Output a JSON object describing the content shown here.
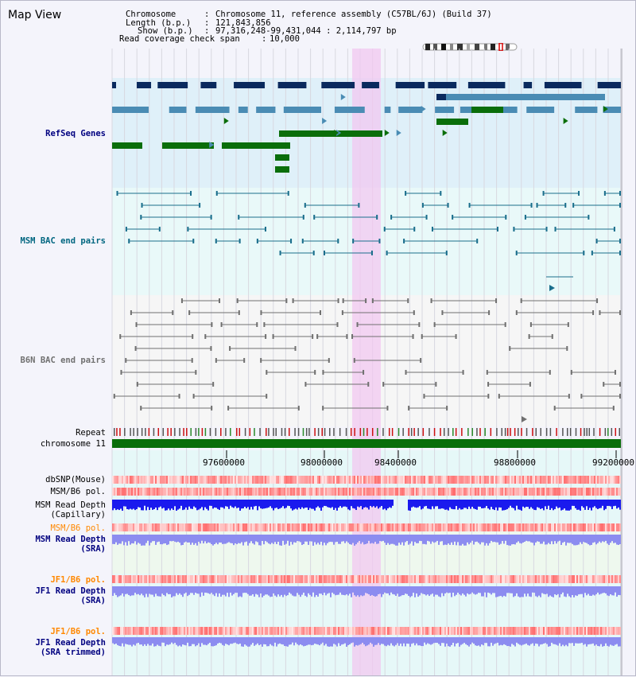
{
  "panel": {
    "title": "Map View"
  },
  "info": {
    "chromosome_label": "Chromosome",
    "chromosome_value": "Chromosome 11, reference assembly (C57BL/6J) (Build 37)",
    "length_label": "Length (b.p.)",
    "length_value": "121,843,856",
    "show_label": "Show (b.p.)",
    "show_value": "97,316,248-99,431,044 : 2,114,797 bp",
    "coverage_label": "Read coverage check span",
    "coverage_value": "10,000"
  },
  "tracks": {
    "refseq": "RefSeq Genes",
    "msm_bac": "MSM BAC end pairs",
    "b6n_bac": "B6N BAC end pairs",
    "repeat": "Repeat",
    "chromosome": "chromosome 11",
    "dbsnp": "dbSNP(Mouse)",
    "msm_b6_pol": "MSM/B6 pol.",
    "msm_read_depth_cap": "MSM Read Depth\n(Capillary)",
    "msm_b6_pol_2": "MSM/B6 pol.",
    "msm_read_depth_sra": "MSM Read Depth\n(SRA)",
    "jf1_b6_pol": "JF1/B6 pol.",
    "jf1_read_depth_sra": "JF1 Read Depth\n(SRA)",
    "jf1_b6_pol_2": "JF1/B6 pol.",
    "jf1_read_depth_trim": "JF1 Read Depth\n(SRA trimmed)"
  },
  "axis": {
    "ticks": [
      "97600000",
      "98000000",
      "98400000",
      "98800000",
      "99200000"
    ]
  },
  "colors": {
    "refseq_dark": "#0a2a5e",
    "refseq_mid": "#4a8cb4",
    "refseq_green": "#0a6e0a",
    "msm_bac": "#1a6e8c",
    "b6n_bac": "#707070",
    "highlight": "#f2c8f0",
    "chromosome": "#0a6e0a",
    "depth_blue": "#1a1aee",
    "depth_light": "#8c8cf0",
    "label_navy": "#000080",
    "label_teal": "#006680",
    "label_gray": "#707070",
    "label_orange": "#ff8800"
  }
}
